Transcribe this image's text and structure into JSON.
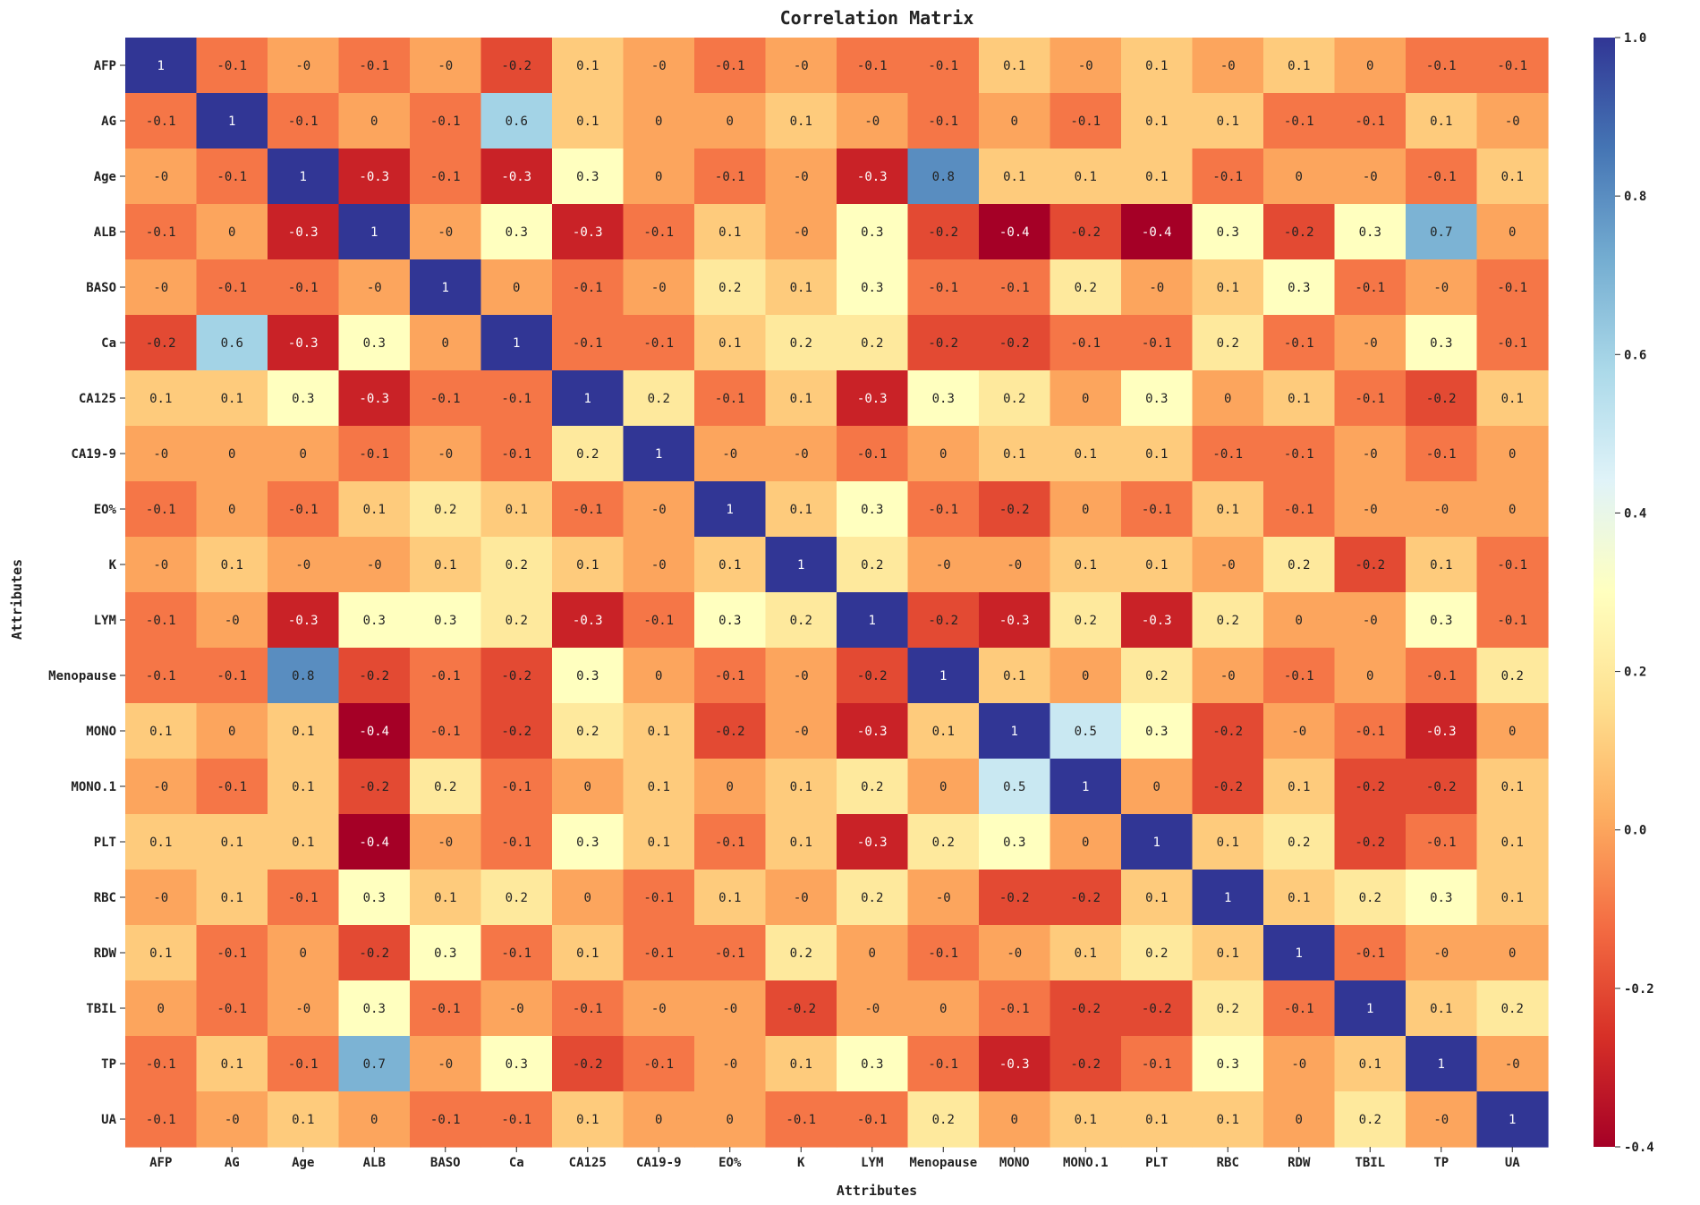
{
  "chart_data": {
    "type": "heatmap",
    "title": "Correlation Matrix",
    "xlabel": "Attributes",
    "ylabel": "Attributes",
    "categories": [
      "AFP",
      "AG",
      "Age",
      "ALB",
      "BASO",
      "Ca",
      "CA125",
      "CA19-9",
      "EO%",
      "K",
      "LYM",
      "Menopause",
      "MONO",
      "MONO.1",
      "PLT",
      "RBC",
      "RDW",
      "TBIL",
      "TP",
      "UA"
    ],
    "values": [
      [
        "1",
        "-0.1",
        "-0",
        "-0.1",
        "-0",
        "-0.2",
        "0.1",
        "-0",
        "-0.1",
        "-0",
        "-0.1",
        "-0.1",
        "0.1",
        "-0",
        "0.1",
        "-0",
        "0.1",
        "0",
        "-0.1",
        "-0.1"
      ],
      [
        "-0.1",
        "1",
        "-0.1",
        "0",
        "-0.1",
        "0.6",
        "0.1",
        "0",
        "0",
        "0.1",
        "-0",
        "-0.1",
        "0",
        "-0.1",
        "0.1",
        "0.1",
        "-0.1",
        "-0.1",
        "0.1",
        "-0"
      ],
      [
        "-0",
        "-0.1",
        "1",
        "-0.3",
        "-0.1",
        "-0.3",
        "0.3",
        "0",
        "-0.1",
        "-0",
        "-0.3",
        "0.8",
        "0.1",
        "0.1",
        "0.1",
        "-0.1",
        "0",
        "-0",
        "-0.1",
        "0.1"
      ],
      [
        "-0.1",
        "0",
        "-0.3",
        "1",
        "-0",
        "0.3",
        "-0.3",
        "-0.1",
        "0.1",
        "-0",
        "0.3",
        "-0.2",
        "-0.4",
        "-0.2",
        "-0.4",
        "0.3",
        "-0.2",
        "0.3",
        "0.7",
        "0"
      ],
      [
        "-0",
        "-0.1",
        "-0.1",
        "-0",
        "1",
        "0",
        "-0.1",
        "-0",
        "0.2",
        "0.1",
        "0.3",
        "-0.1",
        "-0.1",
        "0.2",
        "-0",
        "0.1",
        "0.3",
        "-0.1",
        "-0",
        "-0.1"
      ],
      [
        "-0.2",
        "0.6",
        "-0.3",
        "0.3",
        "0",
        "1",
        "-0.1",
        "-0.1",
        "0.1",
        "0.2",
        "0.2",
        "-0.2",
        "-0.2",
        "-0.1",
        "-0.1",
        "0.2",
        "-0.1",
        "-0",
        "0.3",
        "-0.1"
      ],
      [
        "0.1",
        "0.1",
        "0.3",
        "-0.3",
        "-0.1",
        "-0.1",
        "1",
        "0.2",
        "-0.1",
        "0.1",
        "-0.3",
        "0.3",
        "0.2",
        "0",
        "0.3",
        "0",
        "0.1",
        "-0.1",
        "-0.2",
        "0.1"
      ],
      [
        "-0",
        "0",
        "0",
        "-0.1",
        "-0",
        "-0.1",
        "0.2",
        "1",
        "-0",
        "-0",
        "-0.1",
        "0",
        "0.1",
        "0.1",
        "0.1",
        "-0.1",
        "-0.1",
        "-0",
        "-0.1",
        "0"
      ],
      [
        "-0.1",
        "0",
        "-0.1",
        "0.1",
        "0.2",
        "0.1",
        "-0.1",
        "-0",
        "1",
        "0.1",
        "0.3",
        "-0.1",
        "-0.2",
        "0",
        "-0.1",
        "0.1",
        "-0.1",
        "-0",
        "-0",
        "0"
      ],
      [
        "-0",
        "0.1",
        "-0",
        "-0",
        "0.1",
        "0.2",
        "0.1",
        "-0",
        "0.1",
        "1",
        "0.2",
        "-0",
        "-0",
        "0.1",
        "0.1",
        "-0",
        "0.2",
        "-0.2",
        "0.1",
        "-0.1"
      ],
      [
        "-0.1",
        "-0",
        "-0.3",
        "0.3",
        "0.3",
        "0.2",
        "-0.3",
        "-0.1",
        "0.3",
        "0.2",
        "1",
        "-0.2",
        "-0.3",
        "0.2",
        "-0.3",
        "0.2",
        "0",
        "-0",
        "0.3",
        "-0.1"
      ],
      [
        "-0.1",
        "-0.1",
        "0.8",
        "-0.2",
        "-0.1",
        "-0.2",
        "0.3",
        "0",
        "-0.1",
        "-0",
        "-0.2",
        "1",
        "0.1",
        "0",
        "0.2",
        "-0",
        "-0.1",
        "0",
        "-0.1",
        "0.2"
      ],
      [
        "0.1",
        "0",
        "0.1",
        "-0.4",
        "-0.1",
        "-0.2",
        "0.2",
        "0.1",
        "-0.2",
        "-0",
        "-0.3",
        "0.1",
        "1",
        "0.5",
        "0.3",
        "-0.2",
        "-0",
        "-0.1",
        "-0.3",
        "0"
      ],
      [
        "-0",
        "-0.1",
        "0.1",
        "-0.2",
        "0.2",
        "-0.1",
        "0",
        "0.1",
        "0",
        "0.1",
        "0.2",
        "0",
        "0.5",
        "1",
        "0",
        "-0.2",
        "0.1",
        "-0.2",
        "-0.2",
        "0.1"
      ],
      [
        "0.1",
        "0.1",
        "0.1",
        "-0.4",
        "-0",
        "-0.1",
        "0.3",
        "0.1",
        "-0.1",
        "0.1",
        "-0.3",
        "0.2",
        "0.3",
        "0",
        "1",
        "0.1",
        "0.2",
        "-0.2",
        "-0.1",
        "0.1"
      ],
      [
        "-0",
        "0.1",
        "-0.1",
        "0.3",
        "0.1",
        "0.2",
        "0",
        "-0.1",
        "0.1",
        "-0",
        "0.2",
        "-0",
        "-0.2",
        "-0.2",
        "0.1",
        "1",
        "0.1",
        "0.2",
        "0.3",
        "0.1"
      ],
      [
        "0.1",
        "-0.1",
        "0",
        "-0.2",
        "0.3",
        "-0.1",
        "0.1",
        "-0.1",
        "-0.1",
        "0.2",
        "0",
        "-0.1",
        "-0",
        "0.1",
        "0.2",
        "0.1",
        "1",
        "-0.1",
        "-0",
        "0"
      ],
      [
        "0",
        "-0.1",
        "-0",
        "0.3",
        "-0.1",
        "-0",
        "-0.1",
        "-0",
        "-0",
        "-0.2",
        "-0",
        "0",
        "-0.1",
        "-0.2",
        "-0.2",
        "0.2",
        "-0.1",
        "1",
        "0.1",
        "0.2"
      ],
      [
        "-0.1",
        "0.1",
        "-0.1",
        "0.7",
        "-0",
        "0.3",
        "-0.2",
        "-0.1",
        "-0",
        "0.1",
        "0.3",
        "-0.1",
        "-0.3",
        "-0.2",
        "-0.1",
        "0.3",
        "-0",
        "0.1",
        "1",
        "-0"
      ],
      [
        "-0.1",
        "-0",
        "0.1",
        "0",
        "-0.1",
        "-0.1",
        "0.1",
        "0",
        "0",
        "-0.1",
        "-0.1",
        "0.2",
        "0",
        "0.1",
        "0.1",
        "0.1",
        "0",
        "0.2",
        "-0",
        "1"
      ]
    ],
    "colorbar": {
      "min": -0.4,
      "max": 1.0,
      "colormap": "RdYlBu",
      "ticks": [
        "1.0",
        "0.8",
        "0.6",
        "0.4",
        "0.2",
        "0.0",
        "-0.2",
        "-0.4"
      ],
      "tick_values": [
        1.0,
        0.8,
        0.6,
        0.4,
        0.2,
        0.0,
        -0.2,
        -0.4
      ]
    },
    "grid": false
  }
}
